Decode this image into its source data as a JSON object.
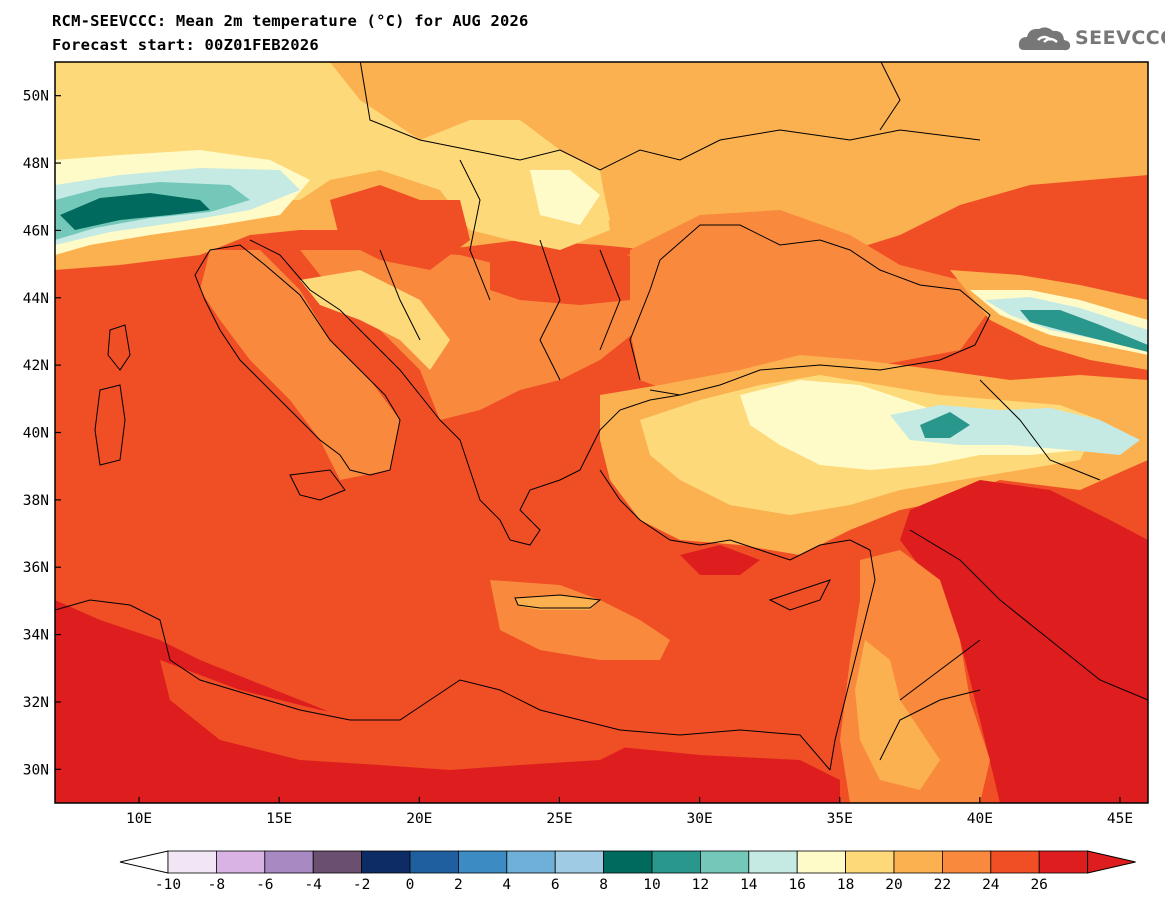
{
  "title_line1": "RCM-SEEVCCC: Mean 2m temperature (°C) for AUG 2026",
  "title_line2": "Forecast start: 00Z01FEB2026",
  "logo_text": "SEEVCCC",
  "map": {
    "lon_range": [
      7,
      46
    ],
    "lat_range": [
      29,
      51
    ],
    "lon_ticks": [
      "10E",
      "15E",
      "20E",
      "25E",
      "30E",
      "35E",
      "40E",
      "45E"
    ],
    "lat_ticks": [
      "50N",
      "48N",
      "46N",
      "44N",
      "42N",
      "40N",
      "38N",
      "36N",
      "34N",
      "32N",
      "30N"
    ]
  },
  "colorbar": {
    "labels": [
      "-10",
      "-8",
      "-6",
      "-4",
      "-2",
      "0",
      "2",
      "4",
      "6",
      "8",
      "10",
      "12",
      "14",
      "16",
      "18",
      "20",
      "22",
      "24",
      "26"
    ],
    "colors": [
      "#f1e6f5",
      "#d8b3e3",
      "#a889c1",
      "#6b4f70",
      "#0d2c66",
      "#1f5fa0",
      "#3d8bc3",
      "#6eb0d8",
      "#9fcbe5",
      "#006a5e",
      "#2a978c",
      "#73c8b9",
      "#c5e9e3",
      "#fffbc9",
      "#fdd97a",
      "#fbb14f",
      "#f98a3d",
      "#f04e25",
      "#de1e1e"
    ],
    "under_color": "#ffffff",
    "over_color": "#de1e1e"
  },
  "colors": {
    "land_base": "#f98a3d",
    "sea": "#f04e25",
    "hot": "#de1e1e",
    "mild": "#fbb14f",
    "cool": "#fdd97a",
    "pale": "#fffbc9",
    "cold_light": "#c5e9e3",
    "cold_mid": "#73c8b9",
    "cold_dark": "#2a978c",
    "cold_darkest": "#006a5e",
    "border": "#000000"
  }
}
